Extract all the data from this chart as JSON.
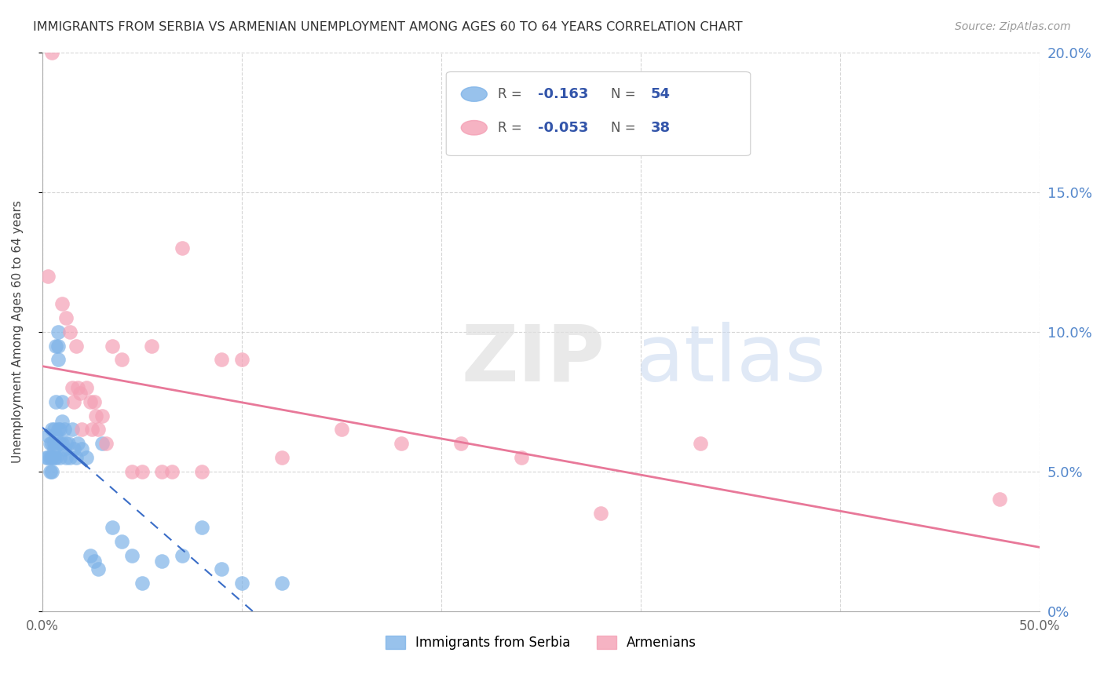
{
  "title": "IMMIGRANTS FROM SERBIA VS ARMENIAN UNEMPLOYMENT AMONG AGES 60 TO 64 YEARS CORRELATION CHART",
  "source": "Source: ZipAtlas.com",
  "ylabel": "Unemployment Among Ages 60 to 64 years",
  "xlim": [
    0,
    0.5
  ],
  "ylim": [
    0,
    0.2
  ],
  "ytick_labels_right": [
    "0%",
    "5.0%",
    "10.0%",
    "15.0%",
    "20.0%"
  ],
  "xtick_labels": [
    "0.0%",
    "",
    "",
    "",
    "",
    "50.0%"
  ],
  "legend_r_serbia": "-0.163",
  "legend_n_serbia": "54",
  "legend_r_armenian": "-0.053",
  "legend_n_armenian": "38",
  "serbia_color": "#7EB3E8",
  "armenian_color": "#F4A0B5",
  "serbia_line_color": "#3A6DC7",
  "armenian_line_color": "#E87899",
  "serbia_x": [
    0.002,
    0.003,
    0.003,
    0.004,
    0.004,
    0.004,
    0.005,
    0.005,
    0.005,
    0.005,
    0.006,
    0.006,
    0.006,
    0.006,
    0.007,
    0.007,
    0.007,
    0.007,
    0.008,
    0.008,
    0.008,
    0.008,
    0.009,
    0.009,
    0.009,
    0.01,
    0.01,
    0.01,
    0.011,
    0.011,
    0.012,
    0.012,
    0.013,
    0.014,
    0.015,
    0.016,
    0.017,
    0.018,
    0.02,
    0.022,
    0.024,
    0.026,
    0.028,
    0.03,
    0.035,
    0.04,
    0.045,
    0.05,
    0.06,
    0.07,
    0.08,
    0.09,
    0.1,
    0.12
  ],
  "serbia_y": [
    0.055,
    0.055,
    0.063,
    0.06,
    0.055,
    0.05,
    0.065,
    0.06,
    0.055,
    0.05,
    0.065,
    0.06,
    0.058,
    0.055,
    0.095,
    0.075,
    0.063,
    0.055,
    0.1,
    0.095,
    0.09,
    0.065,
    0.065,
    0.06,
    0.055,
    0.075,
    0.068,
    0.06,
    0.065,
    0.058,
    0.06,
    0.055,
    0.06,
    0.055,
    0.065,
    0.058,
    0.055,
    0.06,
    0.058,
    0.055,
    0.02,
    0.018,
    0.015,
    0.06,
    0.03,
    0.025,
    0.02,
    0.01,
    0.018,
    0.02,
    0.03,
    0.015,
    0.01,
    0.01
  ],
  "armenian_x": [
    0.003,
    0.005,
    0.01,
    0.012,
    0.014,
    0.015,
    0.016,
    0.017,
    0.018,
    0.019,
    0.02,
    0.022,
    0.024,
    0.025,
    0.026,
    0.027,
    0.028,
    0.03,
    0.032,
    0.035,
    0.04,
    0.045,
    0.05,
    0.055,
    0.06,
    0.065,
    0.07,
    0.08,
    0.09,
    0.1,
    0.12,
    0.15,
    0.18,
    0.21,
    0.24,
    0.28,
    0.33,
    0.48
  ],
  "armenian_y": [
    0.12,
    0.2,
    0.11,
    0.105,
    0.1,
    0.08,
    0.075,
    0.095,
    0.08,
    0.078,
    0.065,
    0.08,
    0.075,
    0.065,
    0.075,
    0.07,
    0.065,
    0.07,
    0.06,
    0.095,
    0.09,
    0.05,
    0.05,
    0.095,
    0.05,
    0.05,
    0.13,
    0.05,
    0.09,
    0.09,
    0.055,
    0.065,
    0.06,
    0.06,
    0.055,
    0.035,
    0.06,
    0.04
  ],
  "background_color": "#FFFFFF",
  "grid_color": "#CCCCCC"
}
